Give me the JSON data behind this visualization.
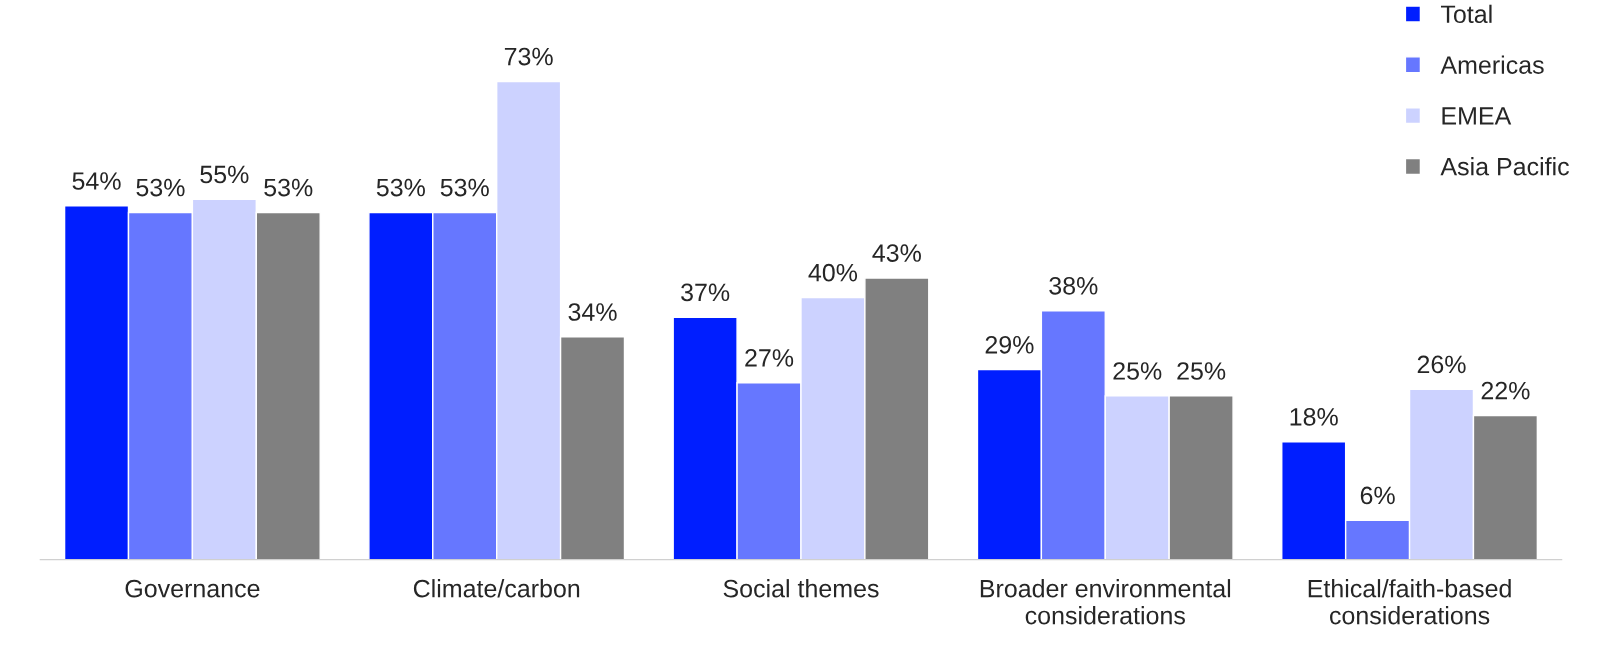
{
  "chart_data": {
    "type": "bar",
    "categories": [
      "Governance",
      "Climate/carbon",
      "Social themes",
      "Broader environmental\nconsiderations",
      "Ethical/faith-based\nconsiderations"
    ],
    "series": [
      {
        "name": "Total",
        "color": "#001eff",
        "values": [
          54,
          53,
          37,
          29,
          18
        ],
        "value_labels": [
          "54%",
          "53%",
          "37%",
          "29%",
          "18%"
        ]
      },
      {
        "name": "Americas",
        "color": "#6677ff",
        "values": [
          53,
          53,
          27,
          38,
          6
        ],
        "value_labels": [
          "53%",
          "53%",
          "27%",
          "38%",
          "6%"
        ]
      },
      {
        "name": "EMEA",
        "color": "#ccd2ff",
        "values": [
          55,
          73,
          40,
          25,
          26
        ],
        "value_labels": [
          "55%",
          "73%",
          "40%",
          "25%",
          "26%"
        ]
      },
      {
        "name": "Asia Pacific",
        "color": "#808080",
        "values": [
          53,
          34,
          43,
          25,
          22
        ],
        "value_labels": [
          "53%",
          "34%",
          "43%",
          "25%",
          "22%"
        ]
      }
    ],
    "legend": "top right",
    "grid": false
  }
}
